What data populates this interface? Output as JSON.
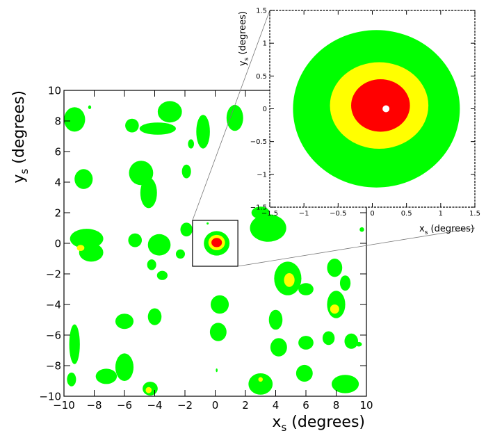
{
  "chart_data": [
    {
      "type": "contour",
      "panel": "main",
      "xlabel": {
        "symbol": "x",
        "sub": "s",
        "unit": " (degrees)"
      },
      "ylabel": {
        "symbol": "y",
        "sub": "s",
        "unit": " (degrees)"
      },
      "xlim": [
        -10,
        10
      ],
      "ylim": [
        -10,
        10
      ],
      "xticks": [
        -10,
        -8,
        -6,
        -4,
        -2,
        0,
        2,
        4,
        6,
        8,
        10
      ],
      "yticks": [
        -10,
        -8,
        -6,
        -4,
        -2,
        0,
        2,
        4,
        6,
        8,
        10
      ],
      "levels": [
        {
          "color": "#00ff00"
        },
        {
          "color": "#ffff00"
        },
        {
          "color": "#ff0000"
        }
      ],
      "regions": [
        {
          "level": 0,
          "cx": 0.1,
          "cy": 0.0,
          "rx": 0.85,
          "ry": 0.8
        },
        {
          "level": 1,
          "cx": 0.1,
          "cy": 0.05,
          "rx": 0.55,
          "ry": 0.5
        },
        {
          "level": 2,
          "cx": 0.1,
          "cy": 0.05,
          "rx": 0.35,
          "ry": 0.3
        },
        {
          "level": 0,
          "cx": -9.3,
          "cy": 8.1,
          "rx": 0.7,
          "ry": 0.8
        },
        {
          "level": 0,
          "cx": -8.7,
          "cy": 4.2,
          "rx": 0.6,
          "ry": 0.65
        },
        {
          "level": 0,
          "cx": -3.8,
          "cy": 7.5,
          "rx": 1.2,
          "ry": 0.4
        },
        {
          "level": 0,
          "cx": -3.0,
          "cy": 8.6,
          "rx": 0.8,
          "ry": 0.7
        },
        {
          "level": 0,
          "cx": -5.5,
          "cy": 7.7,
          "rx": 0.45,
          "ry": 0.45
        },
        {
          "level": 0,
          "cx": -1.6,
          "cy": 6.5,
          "rx": 0.2,
          "ry": 0.3
        },
        {
          "level": 0,
          "cx": -1.9,
          "cy": 4.7,
          "rx": 0.3,
          "ry": 0.45
        },
        {
          "level": 0,
          "cx": -0.8,
          "cy": 7.3,
          "rx": 0.45,
          "ry": 1.1
        },
        {
          "level": 0,
          "cx": 1.3,
          "cy": 8.2,
          "rx": 0.55,
          "ry": 0.85
        },
        {
          "level": 0,
          "cx": -4.9,
          "cy": 4.6,
          "rx": 0.8,
          "ry": 0.8
        },
        {
          "level": 0,
          "cx": -4.4,
          "cy": 3.3,
          "rx": 0.55,
          "ry": 1.0
        },
        {
          "level": 0,
          "cx": -8.5,
          "cy": 0.3,
          "rx": 1.1,
          "ry": 0.65
        },
        {
          "level": 1,
          "cx": -8.9,
          "cy": -0.3,
          "rx": 0.25,
          "ry": 0.2
        },
        {
          "level": 0,
          "cx": -8.2,
          "cy": -0.6,
          "rx": 0.8,
          "ry": 0.6
        },
        {
          "level": 0,
          "cx": -5.3,
          "cy": 0.2,
          "rx": 0.45,
          "ry": 0.45
        },
        {
          "level": 0,
          "cx": -3.7,
          "cy": -0.1,
          "rx": 0.75,
          "ry": 0.7
        },
        {
          "level": 0,
          "cx": -4.2,
          "cy": -1.4,
          "rx": 0.3,
          "ry": 0.35
        },
        {
          "level": 0,
          "cx": -3.5,
          "cy": -2.1,
          "rx": 0.35,
          "ry": 0.3
        },
        {
          "level": 0,
          "cx": -1.9,
          "cy": 0.9,
          "rx": 0.4,
          "ry": 0.45
        },
        {
          "level": 0,
          "cx": -2.3,
          "cy": -0.7,
          "rx": 0.3,
          "ry": 0.3
        },
        {
          "level": 0,
          "cx": 3.5,
          "cy": 1.0,
          "rx": 1.2,
          "ry": 0.9
        },
        {
          "level": 0,
          "cx": 3.0,
          "cy": 2.0,
          "rx": 0.6,
          "ry": 0.4
        },
        {
          "level": 0,
          "cx": 4.8,
          "cy": -2.3,
          "rx": 0.9,
          "ry": 1.1
        },
        {
          "level": 1,
          "cx": 4.9,
          "cy": -2.4,
          "rx": 0.35,
          "ry": 0.45
        },
        {
          "level": 0,
          "cx": 6.0,
          "cy": -3.0,
          "rx": 0.5,
          "ry": 0.4
        },
        {
          "level": 0,
          "cx": 7.9,
          "cy": -1.6,
          "rx": 0.5,
          "ry": 0.6
        },
        {
          "level": 0,
          "cx": 8.0,
          "cy": -4.0,
          "rx": 0.6,
          "ry": 0.9
        },
        {
          "level": 1,
          "cx": 7.9,
          "cy": -4.3,
          "rx": 0.3,
          "ry": 0.3
        },
        {
          "level": 0,
          "cx": 8.6,
          "cy": -2.6,
          "rx": 0.35,
          "ry": 0.5
        },
        {
          "level": 0,
          "cx": 9.0,
          "cy": -6.4,
          "rx": 0.45,
          "ry": 0.5
        },
        {
          "level": 0,
          "cx": 7.5,
          "cy": -6.2,
          "rx": 0.4,
          "ry": 0.45
        },
        {
          "level": 0,
          "cx": 4.0,
          "cy": -5.0,
          "rx": 0.45,
          "ry": 0.65
        },
        {
          "level": 0,
          "cx": 4.2,
          "cy": -6.8,
          "rx": 0.55,
          "ry": 0.6
        },
        {
          "level": 0,
          "cx": 6.0,
          "cy": -6.5,
          "rx": 0.5,
          "ry": 0.45
        },
        {
          "level": 0,
          "cx": 5.9,
          "cy": -8.5,
          "rx": 0.55,
          "ry": 0.55
        },
        {
          "level": 0,
          "cx": 3.0,
          "cy": -9.2,
          "rx": 0.8,
          "ry": 0.7
        },
        {
          "level": 1,
          "cx": 3.0,
          "cy": -8.9,
          "rx": 0.15,
          "ry": 0.15
        },
        {
          "level": 0,
          "cx": 8.6,
          "cy": -9.2,
          "rx": 0.9,
          "ry": 0.6
        },
        {
          "level": 0,
          "cx": 0.3,
          "cy": -4.0,
          "rx": 0.6,
          "ry": 0.6
        },
        {
          "level": 0,
          "cx": 0.2,
          "cy": -5.8,
          "rx": 0.55,
          "ry": 0.6
        },
        {
          "level": 0,
          "cx": -4.0,
          "cy": -4.8,
          "rx": 0.45,
          "ry": 0.55
        },
        {
          "level": 0,
          "cx": -6.0,
          "cy": -5.1,
          "rx": 0.6,
          "ry": 0.5
        },
        {
          "level": 0,
          "cx": -9.3,
          "cy": -6.6,
          "rx": 0.35,
          "ry": 1.3
        },
        {
          "level": 0,
          "cx": -7.2,
          "cy": -8.7,
          "rx": 0.7,
          "ry": 0.5
        },
        {
          "level": 0,
          "cx": -6.0,
          "cy": -8.1,
          "rx": 0.6,
          "ry": 0.9
        },
        {
          "level": 0,
          "cx": -4.3,
          "cy": -9.5,
          "rx": 0.5,
          "ry": 0.45
        },
        {
          "level": 1,
          "cx": -4.4,
          "cy": -9.6,
          "rx": 0.2,
          "ry": 0.2
        },
        {
          "level": 0,
          "cx": -9.5,
          "cy": -8.9,
          "rx": 0.3,
          "ry": 0.45
        },
        {
          "level": 0,
          "cx": 9.5,
          "cy": -6.6,
          "rx": 0.2,
          "ry": 0.15
        },
        {
          "level": 0,
          "cx": 9.7,
          "cy": 0.9,
          "rx": 0.15,
          "ry": 0.15
        },
        {
          "level": 0,
          "cx": -8.3,
          "cy": 8.9,
          "rx": 0.1,
          "ry": 0.12
        },
        {
          "level": 0,
          "cx": -0.5,
          "cy": 1.3,
          "rx": 0.07,
          "ry": 0.07
        },
        {
          "level": 0,
          "cx": 0.1,
          "cy": -8.3,
          "rx": 0.06,
          "ry": 0.12
        }
      ],
      "zoom_box": {
        "x": [
          -1.5,
          1.5
        ],
        "y": [
          -1.5,
          1.5
        ]
      }
    },
    {
      "type": "contour",
      "panel": "inset",
      "xlabel": {
        "symbol": "x",
        "sub": "s",
        "unit": " (degrees)"
      },
      "ylabel": {
        "symbol": "y",
        "sub": "s",
        "unit": " (degrees)"
      },
      "xlim": [
        -1.5,
        1.5
      ],
      "ylim": [
        -1.5,
        1.5
      ],
      "xticks": [
        -1.5,
        -1,
        -0.5,
        0,
        0.5,
        1,
        1.5
      ],
      "yticks": [
        -1.5,
        -1,
        -0.5,
        0,
        0.5,
        1,
        1.5
      ],
      "levels": [
        {
          "color": "#00ff00"
        },
        {
          "color": "#ffff00"
        },
        {
          "color": "#ff0000"
        }
      ],
      "regions": [
        {
          "level": 0,
          "cx": 0.06,
          "cy": 0.0,
          "rx": 1.22,
          "ry": 1.2
        },
        {
          "level": 1,
          "cx": 0.1,
          "cy": 0.05,
          "rx": 0.72,
          "ry": 0.66
        },
        {
          "level": 2,
          "cx": 0.12,
          "cy": 0.05,
          "rx": 0.43,
          "ry": 0.4
        }
      ],
      "marker": {
        "x": 0.2,
        "y": 0.0,
        "color": "#ffffff"
      }
    }
  ]
}
